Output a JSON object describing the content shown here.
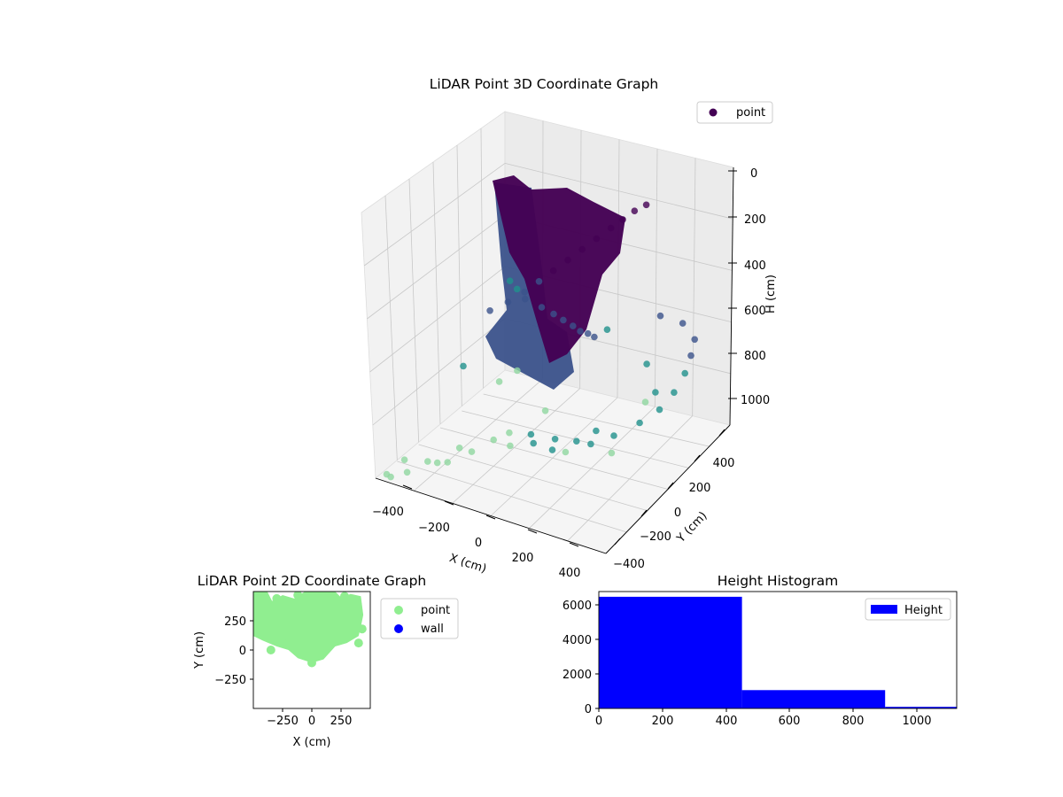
{
  "colors": {
    "scatter3d_high": "#440154",
    "scatter3d_mid": "#3b528b",
    "scatter3d_low": "#21918c",
    "scatter3d_floor": "#90d7a0",
    "point2d": "#90ee90",
    "wall2d": "#0000ff",
    "histogram": "#0000ff"
  },
  "chart_data": [
    {
      "type": "scatter",
      "projection": "3d",
      "title": "LiDAR Point 3D Coordinate Graph",
      "xlabel": "X (cm)",
      "ylabel": "Y (cm)",
      "zlabel": "H (cm)",
      "xlim": [
        -500,
        500
      ],
      "ylim": [
        -500,
        500
      ],
      "zlim": [
        0,
        1100
      ],
      "z_inverted": true,
      "x_ticks": [
        "−400",
        "−200",
        "0",
        "200",
        "400"
      ],
      "y_ticks": [
        "−400",
        "−200",
        "0",
        "200",
        "400"
      ],
      "z_ticks": [
        "0",
        "200",
        "400",
        "600",
        "800",
        "1000"
      ],
      "legend": {
        "label": "point",
        "position": "top-right"
      },
      "grid": true,
      "series": [
        {
          "name": "point",
          "colormap": "viridis",
          "points": [
            [
              -480,
              -450,
              1100
            ],
            [
              -470,
              -330,
              1090
            ],
            [
              -440,
              -490,
              1080
            ],
            [
              -380,
              -470,
              1050
            ],
            [
              -330,
              -400,
              1020
            ],
            [
              -260,
              -450,
              980
            ],
            [
              -220,
              -350,
              950
            ],
            [
              -150,
              -380,
              930
            ],
            [
              -100,
              -300,
              900
            ],
            [
              -60,
              -250,
              880
            ],
            [
              0,
              -350,
              870
            ],
            [
              40,
              -260,
              850
            ],
            [
              90,
              -330,
              840
            ],
            [
              150,
              -270,
              830
            ],
            [
              200,
              -380,
              810
            ],
            [
              260,
              -300,
              790
            ],
            [
              300,
              -220,
              770
            ],
            [
              350,
              -350,
              750
            ],
            [
              400,
              -260,
              740
            ],
            [
              450,
              -150,
              720
            ],
            [
              480,
              -50,
              700
            ],
            [
              470,
              80,
              690
            ],
            [
              450,
              200,
              670
            ],
            [
              420,
              300,
              650
            ],
            [
              380,
              400,
              640
            ],
            [
              300,
              450,
              620
            ],
            [
              220,
              420,
              600
            ],
            [
              -450,
              450,
              680
            ],
            [
              -380,
              380,
              660
            ],
            [
              -300,
              300,
              640
            ],
            [
              -200,
              250,
              620
            ],
            [
              -120,
              200,
              600
            ],
            [
              -50,
              150,
              580
            ],
            [
              20,
              100,
              560
            ],
            [
              80,
              50,
              540
            ],
            [
              130,
              20,
              520
            ],
            [
              180,
              -20,
              500
            ],
            [
              -200,
              -150,
              450
            ],
            [
              -150,
              -100,
              420
            ],
            [
              -100,
              -60,
              380
            ],
            [
              -60,
              -20,
              340
            ],
            [
              -20,
              20,
              300
            ],
            [
              20,
              60,
              260
            ],
            [
              60,
              100,
              220
            ],
            [
              100,
              140,
              180
            ],
            [
              140,
              180,
              140
            ],
            [
              180,
              200,
              100
            ],
            [
              220,
              220,
              60
            ],
            [
              260,
              240,
              30
            ],
            [
              -300,
              100,
              900
            ],
            [
              -250,
              150,
              860
            ],
            [
              200,
              350,
              780
            ],
            [
              350,
              150,
              760
            ],
            [
              -400,
              0,
              820
            ],
            [
              0,
              400,
              720
            ],
            [
              100,
              -100,
              980
            ],
            [
              -100,
              100,
              960
            ],
            [
              300,
              -100,
              920
            ],
            [
              -300,
              -300,
              1060
            ],
            [
              250,
              250,
              880
            ]
          ]
        }
      ]
    },
    {
      "type": "scatter",
      "title": "LiDAR Point 2D Coordinate Graph",
      "xlabel": "X (cm)",
      "ylabel": "Y (cm)",
      "xlim": [
        -500,
        500
      ],
      "ylim": [
        -500,
        500
      ],
      "x_ticks": [
        "−250",
        "0",
        "250"
      ],
      "y_ticks": [
        "250",
        "0",
        "−250"
      ],
      "legend": {
        "position": "outside-right",
        "entries": [
          "point",
          "wall"
        ]
      },
      "series": [
        {
          "name": "point",
          "region_outline": [
            [
              -500,
              500
            ],
            [
              -380,
              500
            ],
            [
              -340,
              420
            ],
            [
              -250,
              470
            ],
            [
              -150,
              440
            ],
            [
              -60,
              500
            ],
            [
              200,
              500
            ],
            [
              260,
              440
            ],
            [
              330,
              480
            ],
            [
              420,
              460
            ],
            [
              440,
              300
            ],
            [
              420,
              200
            ],
            [
              400,
              120
            ],
            [
              300,
              60
            ],
            [
              200,
              30
            ],
            [
              100,
              -80
            ],
            [
              0,
              -110
            ],
            [
              -120,
              -70
            ],
            [
              -200,
              0
            ],
            [
              -300,
              30
            ],
            [
              -420,
              80
            ],
            [
              -500,
              120
            ]
          ],
          "points": [
            [
              -430,
              420
            ],
            [
              -300,
              440
            ],
            [
              -120,
              470
            ],
            [
              280,
              460
            ],
            [
              430,
              180
            ],
            [
              400,
              60
            ],
            [
              -470,
              160
            ],
            [
              -350,
              0
            ],
            [
              0,
              -110
            ],
            [
              -200,
              60
            ]
          ]
        },
        {
          "name": "wall",
          "points": []
        }
      ]
    },
    {
      "type": "bar",
      "title": "Height Histogram",
      "legend": {
        "label": "Height",
        "position": "top-right"
      },
      "xlim": [
        0,
        1125
      ],
      "ylim": [
        0,
        6750
      ],
      "x_ticks": [
        "0",
        "200",
        "400",
        "600",
        "800",
        "1000"
      ],
      "y_ticks": [
        "0",
        "2000",
        "4000",
        "6000"
      ],
      "bins": [
        {
          "start": 0,
          "end": 450,
          "count": 6450
        },
        {
          "start": 450,
          "end": 900,
          "count": 1060
        },
        {
          "start": 900,
          "end": 1125,
          "count": 90
        }
      ]
    }
  ]
}
